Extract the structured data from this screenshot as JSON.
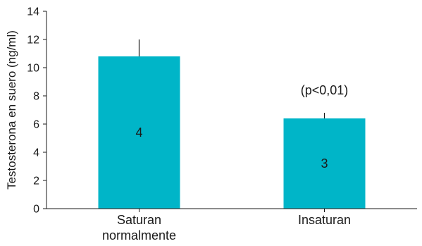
{
  "chart_data": {
    "type": "bar",
    "categories": [
      [
        "Saturan",
        "normalmente"
      ],
      [
        "Insaturan"
      ]
    ],
    "values": [
      10.8,
      6.4
    ],
    "error_upper": [
      12.0,
      6.8
    ],
    "bar_labels": [
      "4",
      "3"
    ],
    "annotations": [
      {
        "category_index": 1,
        "text": "(p<0,01)"
      }
    ],
    "xlabel": "",
    "ylabel": "Testosterona en suero (ng/ml)",
    "ylim": [
      0,
      14
    ],
    "yticks": [
      0,
      2,
      4,
      6,
      8,
      10,
      12,
      14
    ],
    "grid": false,
    "bar_color": "#00b5c8",
    "axis_color": "#1a1a1a"
  }
}
